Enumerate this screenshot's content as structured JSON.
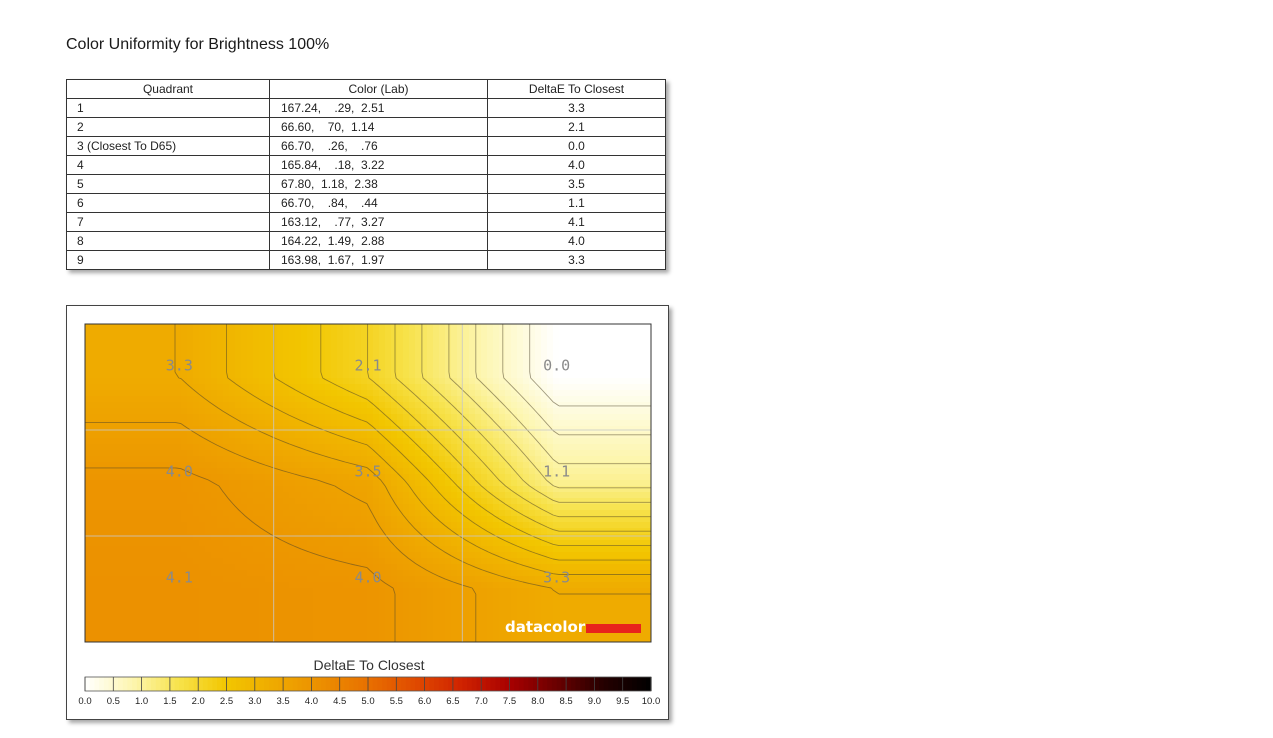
{
  "page_title": "Color Uniformity for Brightness 100%",
  "table": {
    "headers": [
      "Quadrant",
      "Color (Lab)",
      "DeltaE To Closest"
    ],
    "rows": [
      [
        "1",
        "167.24,    .29,  2.51",
        "3.3"
      ],
      [
        "2",
        "66.60,    70,  1.14",
        "2.1"
      ],
      [
        "3 (Closest To D65)",
        "66.70,    .26,    .76",
        "0.0"
      ],
      [
        "4",
        "165.84,    .18,  3.22",
        "4.0"
      ],
      [
        "5",
        "67.80,  1.18,  2.38",
        "3.5"
      ],
      [
        "6",
        "66.70,    .84,    .44",
        "1.1"
      ],
      [
        "7",
        "163.12,    .77,  3.27",
        "4.1"
      ],
      [
        "8",
        "164.22,  1.49,  2.88",
        "4.0"
      ],
      [
        "9",
        "163.98,  1.67,  1.97",
        "3.3"
      ]
    ]
  },
  "chart_data": {
    "type": "heatmap",
    "grid": {
      "rows": 3,
      "cols": 3
    },
    "values": [
      [
        3.3,
        2.1,
        0.0
      ],
      [
        4.0,
        3.5,
        1.1
      ],
      [
        4.1,
        4.0,
        3.3
      ]
    ],
    "cell_labels": [
      [
        "3.3",
        "2.1",
        "0.0"
      ],
      [
        "4.0",
        "3.5",
        "1.1"
      ],
      [
        "4.1",
        "4.0",
        "3.3"
      ]
    ],
    "contours": true,
    "gridlines": true,
    "colorbar": {
      "title": "DeltaE To Closest",
      "range": [
        0,
        10
      ],
      "ticks": [
        "0.0",
        "0.5",
        "1.0",
        "1.5",
        "2.0",
        "2.5",
        "3.0",
        "3.5",
        "4.0",
        "4.5",
        "5.0",
        "5.5",
        "6.0",
        "6.5",
        "7.0",
        "7.5",
        "8.0",
        "8.5",
        "9.0",
        "9.5",
        "10.0"
      ],
      "colors": [
        "#ffffff",
        "#fdf6b0",
        "#f7e24a",
        "#f2c600",
        "#efaa00",
        "#ec8f00",
        "#e87000",
        "#e04a00",
        "#cf2200",
        "#a80000",
        "#6a0000",
        "#250000",
        "#000000"
      ]
    },
    "watermark": "datacolor",
    "watermark_color": "#e8231c"
  }
}
